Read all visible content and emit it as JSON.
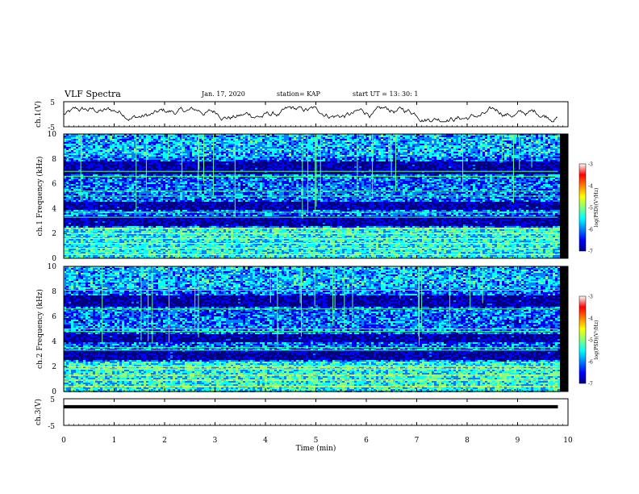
{
  "header": {
    "title": "VLF Spectra",
    "date": "Jan. 17, 2020",
    "station": "station= KAP",
    "start": "start UT = 13: 30: 1"
  },
  "colors": {
    "colormap": [
      "#00007f",
      "#0000ff",
      "#0080ff",
      "#00ffff",
      "#80ff80",
      "#ffff00",
      "#ff8000",
      "#ff0000",
      "#ffffff"
    ]
  },
  "chart_data": [
    {
      "type": "line",
      "name": "ch1-waveform",
      "ylabel": "ch.1(V)",
      "ylim": [
        -5,
        5
      ],
      "yticks": [
        "5",
        "-5"
      ],
      "xlim": [
        0,
        10
      ],
      "trace_range_approx": [
        -3,
        3
      ]
    },
    {
      "type": "heatmap",
      "name": "ch1-spectrogram",
      "ylabel": "ch.1 Frequency (kHz)",
      "ylim": [
        0,
        10
      ],
      "yticks": [
        "0",
        "2",
        "4",
        "6",
        "8",
        "10"
      ],
      "xlim": [
        0,
        10
      ],
      "data_end_min": 9.8,
      "colorbar": {
        "label": "log(PSD)(V²/Hz)",
        "range": [
          -7,
          -3
        ],
        "ticks": [
          "-3",
          "-4",
          "-5",
          "-6",
          "-7"
        ]
      },
      "bands_khz": [
        0.3,
        0.8,
        1.2,
        1.6,
        2.0,
        2.4,
        3.3,
        3.7,
        5.0,
        5.4,
        6.6,
        7.0
      ]
    },
    {
      "type": "heatmap",
      "name": "ch2-spectrogram",
      "ylabel": "ch.2 Frequency (kHz)",
      "ylim": [
        0,
        10
      ],
      "yticks": [
        "0",
        "2",
        "4",
        "6",
        "8",
        "10"
      ],
      "xlim": [
        0,
        10
      ],
      "data_end_min": 9.8,
      "colorbar": {
        "label": "log(PSD)(V²/Hz)",
        "range": [
          -7,
          -3
        ],
        "ticks": [
          "-3",
          "-4",
          "-5",
          "-6",
          "-7"
        ]
      },
      "bands_khz": [
        0.4,
        0.9,
        1.3,
        1.8,
        2.0,
        3.3,
        3.5,
        4.8,
        5.0,
        6.6,
        8.1
      ]
    },
    {
      "type": "line",
      "name": "ch3-waveform",
      "ylabel": "ch.3(V)",
      "ylim": [
        -5,
        5
      ],
      "yticks": [
        "5",
        "-5"
      ],
      "xlim": [
        0,
        10
      ],
      "constant_value": 2
    }
  ],
  "xaxis": {
    "label": "Time (min)",
    "ticks": [
      "0",
      "1",
      "2",
      "3",
      "4",
      "5",
      "6",
      "7",
      "8",
      "9",
      "10"
    ]
  }
}
